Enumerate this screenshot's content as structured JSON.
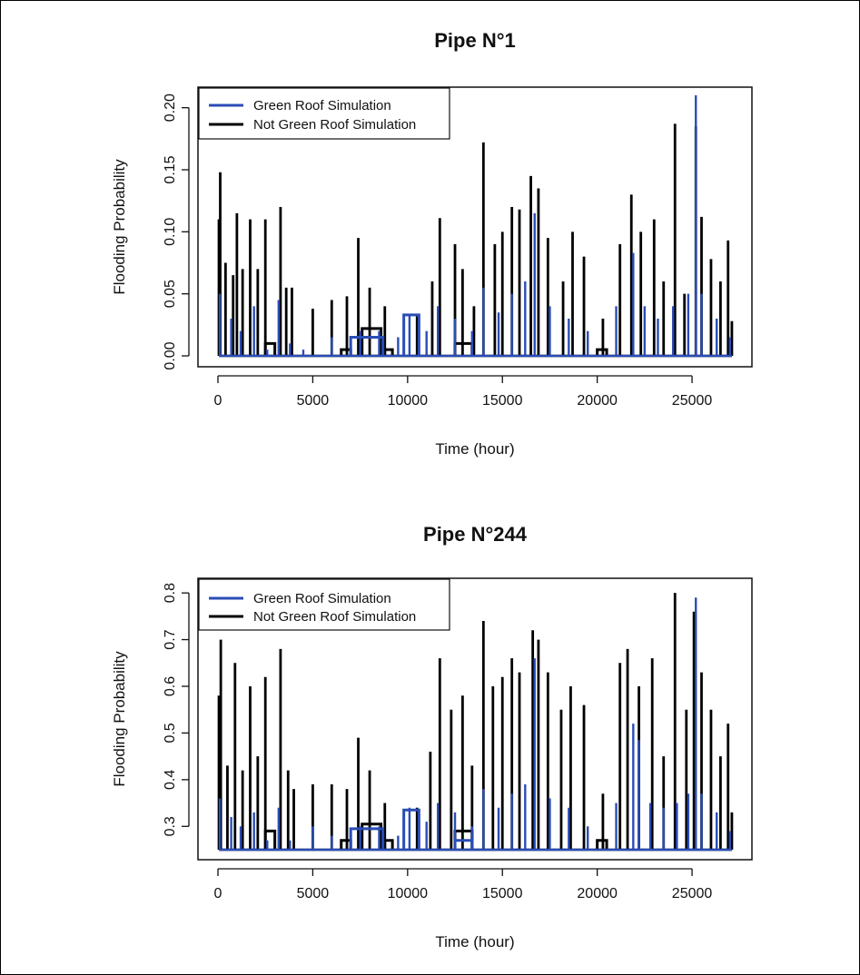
{
  "colors": {
    "green_roof": "#2a4db5",
    "not_green_roof": "#000000",
    "axis": "#111111"
  },
  "chart_data": [
    {
      "type": "line",
      "title": "Pipe N°1",
      "xlabel": "Time (hour)",
      "ylabel": "Flooding Probability",
      "xlim": [
        0,
        27200
      ],
      "ylim": [
        0,
        0.21
      ],
      "xticks": [
        0,
        5000,
        10000,
        15000,
        20000,
        25000
      ],
      "xtick_labels": [
        "0",
        "5000",
        "10000",
        "15000",
        "20000",
        "25000"
      ],
      "yticks": [
        0,
        0.05,
        0.1,
        0.15,
        0.2
      ],
      "ytick_labels": [
        "0.00",
        "0.05",
        "0.10",
        "0.15",
        "0.20"
      ],
      "legend_position": "top-left",
      "baseline": 0,
      "series": [
        {
          "name": "Green Roof Simulation",
          "color": "#2a4db5",
          "peaks": [
            [
              100,
              0.05
            ],
            [
              700,
              0.03
            ],
            [
              1200,
              0.02
            ],
            [
              1900,
              0.04
            ],
            [
              2600,
              0.005
            ],
            [
              3200,
              0.045
            ],
            [
              3800,
              0.01
            ],
            [
              4500,
              0.005
            ],
            [
              6000,
              0.015
            ],
            [
              7000,
              0.01
            ],
            [
              7500,
              0.02
            ],
            [
              8500,
              0.02
            ],
            [
              9500,
              0.015
            ],
            [
              10100,
              0.033
            ],
            [
              11000,
              0.02
            ],
            [
              11600,
              0.04
            ],
            [
              12500,
              0.03
            ],
            [
              13400,
              0.02
            ],
            [
              14000,
              0.055
            ],
            [
              14800,
              0.035
            ],
            [
              15500,
              0.05
            ],
            [
              16200,
              0.06
            ],
            [
              16700,
              0.115
            ],
            [
              17500,
              0.04
            ],
            [
              18500,
              0.03
            ],
            [
              19500,
              0.02
            ],
            [
              21000,
              0.04
            ],
            [
              21900,
              0.083
            ],
            [
              22500,
              0.04
            ],
            [
              23200,
              0.03
            ],
            [
              24000,
              0.04
            ],
            [
              24800,
              0.05
            ],
            [
              25200,
              0.21
            ],
            [
              25500,
              0.05
            ],
            [
              26300,
              0.03
            ],
            [
              27000,
              0.015
            ]
          ],
          "steps": [
            [
              7000,
              8700,
              0.015
            ],
            [
              9800,
              10600,
              0.033
            ]
          ]
        },
        {
          "name": "Not Green Roof Simulation",
          "color": "#000000",
          "peaks": [
            [
              50,
              0.11
            ],
            [
              120,
              0.148
            ],
            [
              400,
              0.075
            ],
            [
              800,
              0.065
            ],
            [
              1000,
              0.115
            ],
            [
              1300,
              0.07
            ],
            [
              1700,
              0.11
            ],
            [
              2100,
              0.07
            ],
            [
              2500,
              0.11
            ],
            [
              3300,
              0.12
            ],
            [
              3600,
              0.055
            ],
            [
              3900,
              0.055
            ],
            [
              5000,
              0.038
            ],
            [
              6000,
              0.045
            ],
            [
              6800,
              0.048
            ],
            [
              7400,
              0.095
            ],
            [
              8000,
              0.055
            ],
            [
              8800,
              0.04
            ],
            [
              10500,
              0.032
            ],
            [
              11300,
              0.06
            ],
            [
              11700,
              0.111
            ],
            [
              12500,
              0.09
            ],
            [
              12900,
              0.07
            ],
            [
              13500,
              0.04
            ],
            [
              14000,
              0.172
            ],
            [
              14600,
              0.09
            ],
            [
              15000,
              0.1
            ],
            [
              15500,
              0.12
            ],
            [
              15900,
              0.118
            ],
            [
              16500,
              0.145
            ],
            [
              16900,
              0.135
            ],
            [
              17400,
              0.095
            ],
            [
              18200,
              0.06
            ],
            [
              18700,
              0.1
            ],
            [
              19300,
              0.08
            ],
            [
              20300,
              0.03
            ],
            [
              21200,
              0.09
            ],
            [
              21800,
              0.13
            ],
            [
              22300,
              0.1
            ],
            [
              23000,
              0.11
            ],
            [
              23500,
              0.06
            ],
            [
              24100,
              0.187
            ],
            [
              24600,
              0.05
            ],
            [
              25200,
              0.185
            ],
            [
              25500,
              0.112
            ],
            [
              26000,
              0.078
            ],
            [
              26500,
              0.06
            ],
            [
              26900,
              0.093
            ],
            [
              27100,
              0.028
            ]
          ],
          "steps": [
            [
              2500,
              3000,
              0.01
            ],
            [
              6500,
              7000,
              0.005
            ],
            [
              7600,
              8600,
              0.022
            ],
            [
              8800,
              9200,
              0.005
            ],
            [
              12500,
              13400,
              0.01
            ],
            [
              20000,
              20500,
              0.005
            ]
          ]
        }
      ]
    },
    {
      "type": "line",
      "title": "Pipe N°244",
      "xlabel": "Time (hour)",
      "ylabel": "Flooding Probability",
      "xlim": [
        0,
        27200
      ],
      "ylim": [
        0.25,
        0.81
      ],
      "xticks": [
        0,
        5000,
        10000,
        15000,
        20000,
        25000
      ],
      "xtick_labels": [
        "0",
        "5000",
        "10000",
        "15000",
        "20000",
        "25000"
      ],
      "yticks": [
        0.3,
        0.4,
        0.5,
        0.6,
        0.7,
        0.8
      ],
      "ytick_labels": [
        "0.3",
        "0.4",
        "0.5",
        "0.6",
        "0.7",
        "0.8"
      ],
      "legend_position": "top-left",
      "baseline": 0.25,
      "series": [
        {
          "name": "Green Roof Simulation",
          "color": "#2a4db5",
          "peaks": [
            [
              100,
              0.36
            ],
            [
              700,
              0.32
            ],
            [
              1200,
              0.3
            ],
            [
              1900,
              0.33
            ],
            [
              2600,
              0.27
            ],
            [
              3200,
              0.34
            ],
            [
              3800,
              0.27
            ],
            [
              5000,
              0.3
            ],
            [
              6000,
              0.28
            ],
            [
              7000,
              0.29
            ],
            [
              7500,
              0.3
            ],
            [
              8500,
              0.3
            ],
            [
              9500,
              0.28
            ],
            [
              10100,
              0.34
            ],
            [
              11000,
              0.31
            ],
            [
              11600,
              0.35
            ],
            [
              12500,
              0.33
            ],
            [
              13400,
              0.3
            ],
            [
              14000,
              0.38
            ],
            [
              14800,
              0.34
            ],
            [
              15500,
              0.37
            ],
            [
              16200,
              0.39
            ],
            [
              16700,
              0.66
            ],
            [
              17500,
              0.36
            ],
            [
              18500,
              0.34
            ],
            [
              19500,
              0.3
            ],
            [
              21000,
              0.35
            ],
            [
              21900,
              0.52
            ],
            [
              22200,
              0.485
            ],
            [
              22800,
              0.35
            ],
            [
              23500,
              0.34
            ],
            [
              24200,
              0.35
            ],
            [
              24800,
              0.37
            ],
            [
              25200,
              0.79
            ],
            [
              25500,
              0.37
            ],
            [
              26300,
              0.33
            ],
            [
              27000,
              0.29
            ]
          ],
          "steps": [
            [
              7000,
              8700,
              0.295
            ],
            [
              9800,
              10600,
              0.335
            ],
            [
              12500,
              13400,
              0.27
            ]
          ]
        },
        {
          "name": "Not Green Roof Simulation",
          "color": "#000000",
          "peaks": [
            [
              50,
              0.58
            ],
            [
              150,
              0.7
            ],
            [
              500,
              0.43
            ],
            [
              900,
              0.65
            ],
            [
              1300,
              0.42
            ],
            [
              1700,
              0.6
            ],
            [
              2100,
              0.45
            ],
            [
              2500,
              0.62
            ],
            [
              3300,
              0.68
            ],
            [
              3700,
              0.42
            ],
            [
              4000,
              0.38
            ],
            [
              5000,
              0.39
            ],
            [
              6000,
              0.39
            ],
            [
              6800,
              0.38
            ],
            [
              7400,
              0.49
            ],
            [
              8000,
              0.42
            ],
            [
              8800,
              0.35
            ],
            [
              10500,
              0.34
            ],
            [
              11200,
              0.46
            ],
            [
              11700,
              0.66
            ],
            [
              12300,
              0.55
            ],
            [
              12900,
              0.58
            ],
            [
              13400,
              0.43
            ],
            [
              14000,
              0.74
            ],
            [
              14500,
              0.6
            ],
            [
              15000,
              0.62
            ],
            [
              15500,
              0.66
            ],
            [
              15900,
              0.63
            ],
            [
              16600,
              0.72
            ],
            [
              16900,
              0.7
            ],
            [
              17400,
              0.63
            ],
            [
              18100,
              0.55
            ],
            [
              18600,
              0.6
            ],
            [
              19300,
              0.56
            ],
            [
              20300,
              0.37
            ],
            [
              21200,
              0.65
            ],
            [
              21600,
              0.68
            ],
            [
              22200,
              0.6
            ],
            [
              22900,
              0.66
            ],
            [
              23500,
              0.45
            ],
            [
              24100,
              0.8
            ],
            [
              24700,
              0.55
            ],
            [
              25100,
              0.76
            ],
            [
              25500,
              0.63
            ],
            [
              26000,
              0.55
            ],
            [
              26500,
              0.45
            ],
            [
              26900,
              0.52
            ],
            [
              27100,
              0.33
            ]
          ],
          "steps": [
            [
              2500,
              3000,
              0.29
            ],
            [
              6500,
              7000,
              0.27
            ],
            [
              7600,
              8600,
              0.305
            ],
            [
              8800,
              9200,
              0.27
            ],
            [
              12500,
              13400,
              0.29
            ],
            [
              20000,
              20500,
              0.27
            ]
          ]
        }
      ]
    }
  ]
}
